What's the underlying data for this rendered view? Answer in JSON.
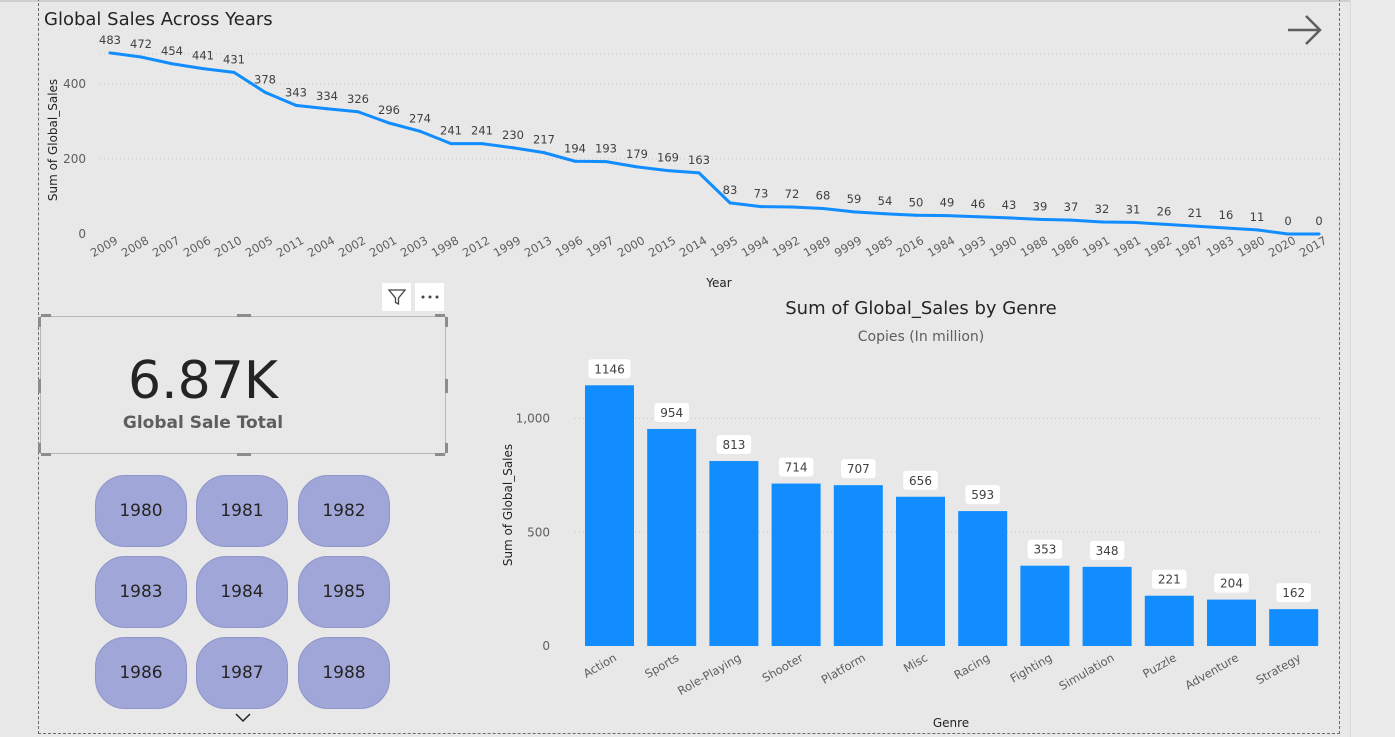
{
  "colors": {
    "line": "#118dff",
    "bar": "#118dff",
    "slicer_fill": "#a1a6d8"
  },
  "line_visual": {
    "title": "Global Sales Across Years"
  },
  "card": {
    "value": "6.87K",
    "label": "Global Sale Total"
  },
  "slicer": {
    "years": [
      "1980",
      "1981",
      "1982",
      "1983",
      "1984",
      "1985",
      "1986",
      "1987",
      "1988"
    ]
  },
  "icons": {
    "next": "arrow-right-icon",
    "filter": "filter-icon",
    "more": "more-options-icon",
    "expand": "chevron-down-icon"
  },
  "chart_data": [
    {
      "type": "line",
      "title": "Global Sales Across Years",
      "xlabel": "Year",
      "ylabel": "Sum of Global_Sales",
      "ylim": [
        0,
        520
      ],
      "yticks": [
        0,
        200,
        400
      ],
      "grid": true,
      "data_labels": true,
      "categories": [
        "2009",
        "2008",
        "2007",
        "2006",
        "2010",
        "2005",
        "2011",
        "2004",
        "2002",
        "2001",
        "2003",
        "1998",
        "2012",
        "1999",
        "2013",
        "1996",
        "1997",
        "2000",
        "2015",
        "2014",
        "1995",
        "1994",
        "1992",
        "1989",
        "9999",
        "1985",
        "2016",
        "1984",
        "1993",
        "1990",
        "1988",
        "1986",
        "1991",
        "1981",
        "1982",
        "1987",
        "1983",
        "1980",
        "2020",
        "2017"
      ],
      "values": [
        483,
        472,
        454,
        441,
        431,
        378,
        343,
        334,
        326,
        296,
        274,
        241,
        241,
        230,
        217,
        194,
        193,
        179,
        169,
        163,
        83,
        73,
        72,
        68,
        59,
        54,
        50,
        49,
        46,
        43,
        39,
        37,
        32,
        31,
        26,
        21,
        16,
        11,
        0,
        0
      ]
    },
    {
      "type": "bar",
      "title": "Sum of Global_Sales by Genre",
      "subtitle": "Copies (In million)",
      "xlabel": "Genre",
      "ylabel": "Sum of Global_Sales",
      "ylim": [
        0,
        1200
      ],
      "yticks": [
        0,
        500,
        1000
      ],
      "ytick_labels": [
        "0",
        "500",
        "1,000"
      ],
      "grid": true,
      "data_labels": true,
      "categories": [
        "Action",
        "Sports",
        "Role-Playing",
        "Shooter",
        "Platform",
        "Misc",
        "Racing",
        "Fighting",
        "Simulation",
        "Puzzle",
        "Adventure",
        "Strategy"
      ],
      "values": [
        1146,
        954,
        813,
        714,
        707,
        656,
        593,
        353,
        348,
        221,
        204,
        162
      ]
    }
  ]
}
